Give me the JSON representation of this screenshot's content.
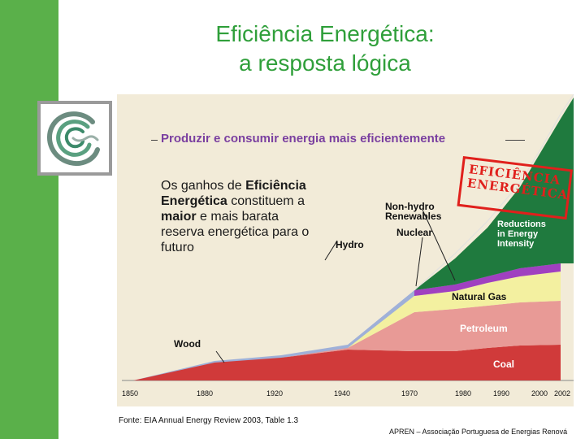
{
  "title_line1": "Eficiência Energética:",
  "title_line2": "a resposta lógica",
  "subtitle": "Produzir e consumir energia mais eficientemente",
  "callout": {
    "part1": "Os ganhos de ",
    "part2": "Eficiência Energética",
    "part3": " constituem a ",
    "part4": "maior",
    "part5": " e mais barata reserva energética para o futuro"
  },
  "stamp_line1": "EFICIÊNCIA",
  "stamp_line2": "ENERGÉTICA",
  "source": "Fonte: EIA Annual Energy Review 2003, Table 1.3",
  "footer": "APREN – Associação Portuguesa de Energias Renová",
  "colors": {
    "sidebar": "#5ab04a",
    "title": "#2f9f3a",
    "coal": "#d03a3a",
    "petroleum": "#e89a96",
    "natural_gas": "#f3f0a0",
    "nuclear": "#a040c0",
    "non_hydro": "#6050c0",
    "efficiency": "#1f7a3e"
  },
  "chart_data": {
    "type": "area",
    "x_ticks": [
      "1850",
      "1880",
      "1920",
      "1940",
      "1970",
      "1980",
      "1990",
      "2000",
      "2002"
    ],
    "labels": {
      "wood": "Wood",
      "hydro": "Hydro",
      "nuclear": "Nuclear",
      "non_hydro": "Non-hydro\nRenewables",
      "natural_gas": "Natural Gas",
      "petroleum": "Petroleum",
      "coal": "Coal",
      "efficiency": "Reductions\nin Energy\nIntensity"
    }
  }
}
